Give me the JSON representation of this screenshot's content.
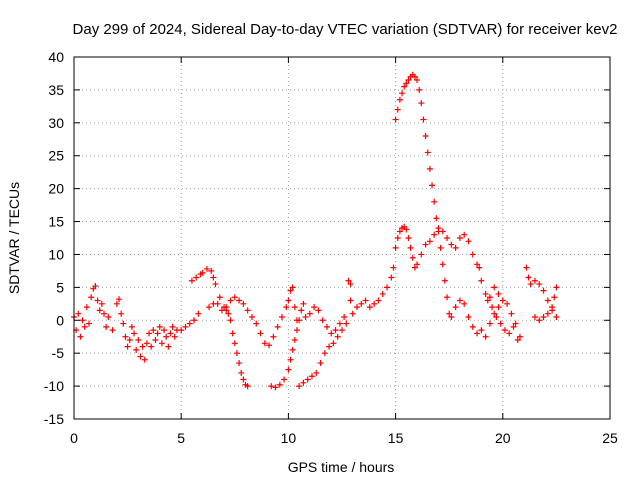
{
  "chart_data": {
    "type": "scatter",
    "title": "Day 299 of 2024, Sidereal Day-to-day VTEC variation (SDTVAR) for receiver kev2",
    "xlabel": "GPS time / hours",
    "ylabel": "SDTVAR / TECUs",
    "xlim": [
      0,
      25
    ],
    "ylim": [
      -15,
      40
    ],
    "xticks": [
      0,
      5,
      10,
      15,
      20,
      25
    ],
    "yticks": [
      -15,
      -10,
      -5,
      0,
      5,
      10,
      15,
      20,
      25,
      30,
      35,
      40
    ],
    "grid": true,
    "marker": "+",
    "color": "#ff0000",
    "series": [
      {
        "name": "SDTVAR",
        "points": [
          [
            0.0,
            0.5
          ],
          [
            0.1,
            -1.5
          ],
          [
            0.2,
            1.0
          ],
          [
            0.3,
            -2.5
          ],
          [
            0.4,
            0.0
          ],
          [
            0.5,
            -1.0
          ],
          [
            0.6,
            2.0
          ],
          [
            0.7,
            -0.5
          ],
          [
            0.8,
            3.5
          ],
          [
            0.9,
            4.8
          ],
          [
            1.0,
            5.2
          ],
          [
            1.1,
            3.0
          ],
          [
            1.2,
            1.5
          ],
          [
            1.3,
            2.5
          ],
          [
            1.4,
            1.0
          ],
          [
            1.5,
            -1.0
          ],
          [
            1.6,
            0.5
          ],
          [
            1.8,
            -1.5
          ],
          [
            2.0,
            2.5
          ],
          [
            2.1,
            3.2
          ],
          [
            2.2,
            1.0
          ],
          [
            2.3,
            -0.5
          ],
          [
            2.4,
            -2.5
          ],
          [
            2.5,
            -4.0
          ],
          [
            2.6,
            -3.0
          ],
          [
            2.7,
            -1.0
          ],
          [
            2.8,
            -2.0
          ],
          [
            2.9,
            -4.5
          ],
          [
            3.0,
            -3.0
          ],
          [
            3.1,
            -5.5
          ],
          [
            3.2,
            -4.0
          ],
          [
            3.3,
            -6.0
          ],
          [
            3.4,
            -3.5
          ],
          [
            3.5,
            -2.0
          ],
          [
            3.6,
            -4.0
          ],
          [
            3.7,
            -1.5
          ],
          [
            3.8,
            -3.0
          ],
          [
            3.9,
            -2.0
          ],
          [
            4.0,
            -1.0
          ],
          [
            4.1,
            -3.5
          ],
          [
            4.2,
            -1.5
          ],
          [
            4.3,
            -2.5
          ],
          [
            4.4,
            -4.0
          ],
          [
            4.5,
            -2.0
          ],
          [
            4.6,
            -1.0
          ],
          [
            4.7,
            -2.5
          ],
          [
            4.8,
            -1.5
          ],
          [
            5.0,
            -1.5
          ],
          [
            5.2,
            -1.0
          ],
          [
            5.4,
            -0.5
          ],
          [
            5.6,
            0.0
          ],
          [
            5.8,
            1.0
          ],
          [
            5.5,
            6.0
          ],
          [
            5.7,
            6.5
          ],
          [
            5.9,
            7.0
          ],
          [
            6.0,
            7.2
          ],
          [
            6.2,
            7.8
          ],
          [
            6.4,
            7.5
          ],
          [
            6.5,
            6.5
          ],
          [
            6.6,
            5.5
          ],
          [
            6.8,
            3.5
          ],
          [
            7.0,
            2.0
          ],
          [
            7.2,
            1.0
          ],
          [
            7.1,
            1.5
          ],
          [
            7.3,
            0.0
          ],
          [
            7.4,
            -2.0
          ],
          [
            7.5,
            -3.5
          ],
          [
            7.6,
            -5.0
          ],
          [
            7.7,
            -6.5
          ],
          [
            7.8,
            -8.0
          ],
          [
            7.9,
            -9.0
          ],
          [
            8.0,
            -9.8
          ],
          [
            8.1,
            -10.0
          ],
          [
            6.3,
            2.0
          ],
          [
            6.5,
            2.5
          ],
          [
            6.7,
            2.5
          ],
          [
            6.9,
            1.5
          ],
          [
            7.1,
            2.0
          ],
          [
            7.3,
            3.0
          ],
          [
            7.5,
            3.5
          ],
          [
            7.7,
            3.0
          ],
          [
            7.9,
            2.5
          ],
          [
            8.1,
            1.5
          ],
          [
            8.3,
            0.5
          ],
          [
            8.5,
            -0.5
          ],
          [
            8.7,
            -2.0
          ],
          [
            8.9,
            -3.5
          ],
          [
            9.1,
            -3.8
          ],
          [
            9.3,
            -2.5
          ],
          [
            9.5,
            -1.0
          ],
          [
            9.7,
            0.5
          ],
          [
            9.9,
            2.0
          ],
          [
            10.0,
            3.0
          ],
          [
            10.1,
            4.5
          ],
          [
            10.2,
            5.0
          ],
          [
            10.3,
            2.0
          ],
          [
            10.4,
            0.0
          ],
          [
            9.2,
            -10.0
          ],
          [
            9.4,
            -10.2
          ],
          [
            9.6,
            -9.8
          ],
          [
            9.8,
            -9.0
          ],
          [
            10.0,
            -7.5
          ],
          [
            10.1,
            -6.0
          ],
          [
            10.2,
            -4.5
          ],
          [
            10.3,
            -3.0
          ],
          [
            10.4,
            -1.5
          ],
          [
            10.5,
            0.0
          ],
          [
            10.6,
            1.5
          ],
          [
            10.7,
            2.5
          ],
          [
            10.5,
            -10.0
          ],
          [
            10.7,
            -9.5
          ],
          [
            10.9,
            -9.0
          ],
          [
            11.1,
            -8.5
          ],
          [
            11.3,
            -8.0
          ],
          [
            11.5,
            -6.5
          ],
          [
            11.7,
            -5.0
          ],
          [
            11.9,
            -4.0
          ],
          [
            12.1,
            -3.5
          ],
          [
            12.3,
            -2.5
          ],
          [
            12.5,
            -1.5
          ],
          [
            12.7,
            -0.5
          ],
          [
            10.8,
            0.5
          ],
          [
            11.0,
            1.0
          ],
          [
            11.2,
            2.0
          ],
          [
            11.4,
            1.5
          ],
          [
            11.6,
            0.0
          ],
          [
            11.8,
            -1.0
          ],
          [
            12.0,
            -2.0
          ],
          [
            12.2,
            -1.5
          ],
          [
            12.4,
            -0.5
          ],
          [
            12.6,
            0.5
          ],
          [
            12.8,
            6.0
          ],
          [
            12.9,
            5.5
          ],
          [
            12.9,
            3.0
          ],
          [
            13.0,
            1.0
          ],
          [
            13.2,
            2.0
          ],
          [
            13.4,
            2.5
          ],
          [
            13.6,
            3.0
          ],
          [
            13.8,
            2.0
          ],
          [
            14.0,
            2.5
          ],
          [
            14.2,
            3.0
          ],
          [
            14.4,
            4.0
          ],
          [
            14.6,
            5.0
          ],
          [
            14.8,
            6.5
          ],
          [
            14.9,
            8.0
          ],
          [
            15.0,
            11.0
          ],
          [
            15.1,
            12.5
          ],
          [
            15.2,
            13.5
          ],
          [
            15.3,
            14.0
          ],
          [
            15.4,
            14.2
          ],
          [
            15.5,
            13.8
          ],
          [
            15.6,
            12.5
          ],
          [
            15.7,
            11.0
          ],
          [
            15.8,
            9.5
          ],
          [
            15.9,
            8.0
          ],
          [
            16.0,
            8.5
          ],
          [
            16.2,
            10.0
          ],
          [
            16.4,
            11.5
          ],
          [
            16.6,
            12.0
          ],
          [
            16.8,
            13.0
          ],
          [
            17.0,
            14.0
          ],
          [
            17.2,
            13.5
          ],
          [
            17.4,
            12.5
          ],
          [
            17.6,
            11.5
          ],
          [
            17.8,
            11.0
          ],
          [
            18.0,
            12.5
          ],
          [
            18.2,
            13.0
          ],
          [
            18.4,
            12.0
          ],
          [
            18.6,
            10.0
          ],
          [
            18.8,
            8.5
          ],
          [
            15.0,
            30.5
          ],
          [
            15.1,
            32.0
          ],
          [
            15.2,
            33.5
          ],
          [
            15.3,
            34.5
          ],
          [
            15.4,
            35.5
          ],
          [
            15.5,
            36.0
          ],
          [
            15.6,
            36.5
          ],
          [
            15.7,
            37.0
          ],
          [
            15.8,
            37.3
          ],
          [
            15.9,
            37.0
          ],
          [
            16.0,
            36.5
          ],
          [
            16.1,
            35.0
          ],
          [
            16.2,
            33.0
          ],
          [
            16.3,
            30.5
          ],
          [
            16.4,
            28.0
          ],
          [
            16.5,
            25.5
          ],
          [
            16.6,
            23.0
          ],
          [
            16.7,
            20.5
          ],
          [
            16.8,
            18.0
          ],
          [
            16.9,
            15.5
          ],
          [
            17.0,
            13.5
          ],
          [
            17.1,
            11.0
          ],
          [
            17.2,
            8.5
          ],
          [
            17.3,
            6.0
          ],
          [
            17.4,
            3.5
          ],
          [
            17.5,
            1.0
          ],
          [
            17.6,
            0.5
          ],
          [
            17.8,
            2.0
          ],
          [
            18.0,
            3.0
          ],
          [
            18.2,
            2.5
          ],
          [
            18.4,
            0.5
          ],
          [
            18.6,
            -1.0
          ],
          [
            18.8,
            -2.0
          ],
          [
            19.0,
            -1.5
          ],
          [
            19.2,
            -2.5
          ],
          [
            19.4,
            -0.5
          ],
          [
            19.6,
            1.0
          ],
          [
            19.8,
            2.0
          ],
          [
            18.9,
            8.0
          ],
          [
            19.0,
            6.0
          ],
          [
            19.2,
            4.0
          ],
          [
            19.4,
            3.5
          ],
          [
            19.6,
            5.0
          ],
          [
            19.8,
            4.0
          ],
          [
            20.0,
            3.0
          ],
          [
            20.2,
            2.5
          ],
          [
            20.4,
            1.0
          ],
          [
            20.6,
            -0.5
          ],
          [
            20.8,
            -2.5
          ],
          [
            19.3,
            3.0
          ],
          [
            19.5,
            2.0
          ],
          [
            19.7,
            0.5
          ],
          [
            19.9,
            -0.5
          ],
          [
            20.1,
            -1.5
          ],
          [
            20.3,
            -2.0
          ],
          [
            20.5,
            -1.0
          ],
          [
            20.7,
            -3.0
          ],
          [
            21.5,
            0.5
          ],
          [
            21.7,
            0.0
          ],
          [
            21.9,
            0.5
          ],
          [
            22.1,
            1.0
          ],
          [
            22.3,
            2.0
          ],
          [
            22.4,
            3.5
          ],
          [
            22.5,
            5.0
          ],
          [
            21.3,
            5.5
          ],
          [
            21.5,
            6.0
          ],
          [
            21.7,
            5.5
          ],
          [
            21.9,
            4.5
          ],
          [
            22.1,
            3.0
          ],
          [
            22.3,
            1.5
          ],
          [
            22.5,
            0.5
          ],
          [
            21.1,
            8.0
          ],
          [
            21.2,
            6.5
          ]
        ]
      }
    ]
  }
}
